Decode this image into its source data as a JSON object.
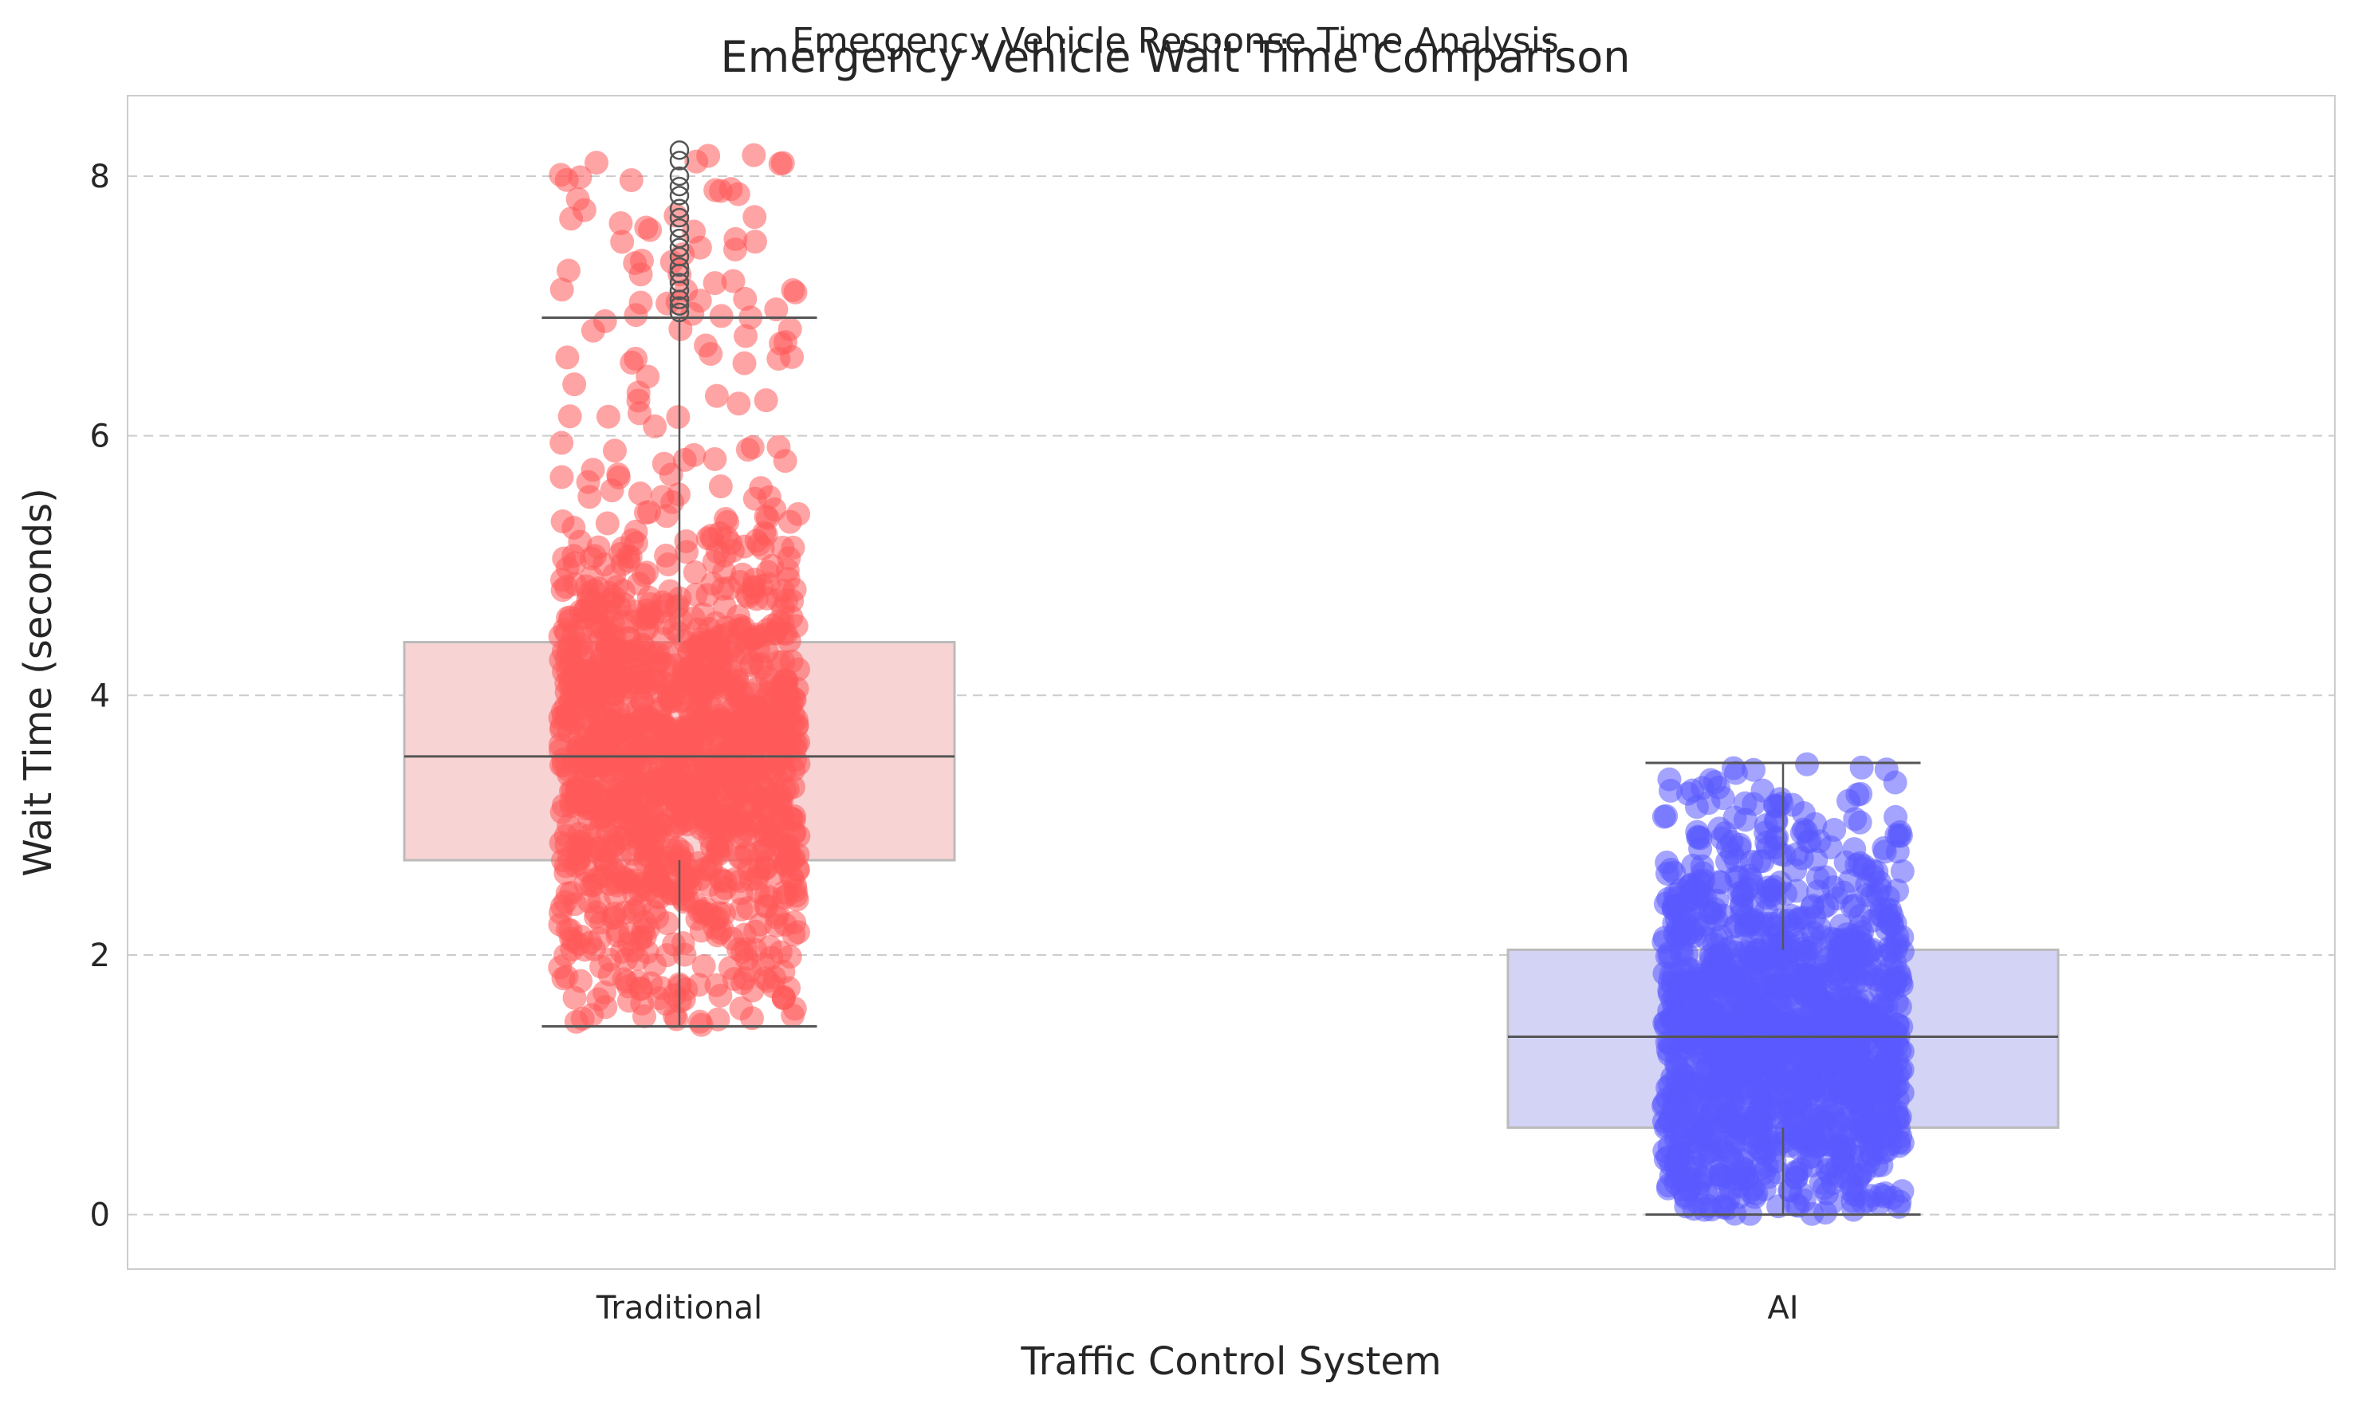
{
  "chart_data": {
    "type": "box",
    "suptitle": "Emergency Vehicle Response Time Analysis",
    "title": "Emergency Vehicle Wait Time Comparison",
    "xlabel": "Traffic Control System",
    "ylabel": "Wait Time (seconds)",
    "categories": [
      "Traditional",
      "AI"
    ],
    "ylim": [
      -0.42,
      8.62
    ],
    "yticks": [
      0,
      2,
      4,
      6,
      8
    ],
    "grid": "y dashed",
    "series": [
      {
        "name": "Traditional",
        "color": "#ff5a5a",
        "box_fill": "#f7d3d4",
        "q1": 2.73,
        "median": 3.53,
        "q3": 4.41,
        "whisker_low": 1.45,
        "whisker_high": 6.91,
        "point_range": [
          1.45,
          8.2
        ],
        "outliers": [
          6.95,
          7.0,
          7.05,
          7.12,
          7.18,
          7.25,
          7.3,
          7.38,
          7.45,
          7.52,
          7.6,
          7.68,
          7.75,
          7.85,
          7.92,
          8.0,
          8.12,
          8.2
        ]
      },
      {
        "name": "AI",
        "color": "#5a5aff",
        "box_fill": "#d3d3f6",
        "q1": 0.67,
        "median": 1.37,
        "q3": 2.04,
        "whisker_low": 0.0,
        "whisker_high": 3.48,
        "point_range": [
          0.0,
          3.48
        ],
        "outliers": []
      }
    ]
  }
}
